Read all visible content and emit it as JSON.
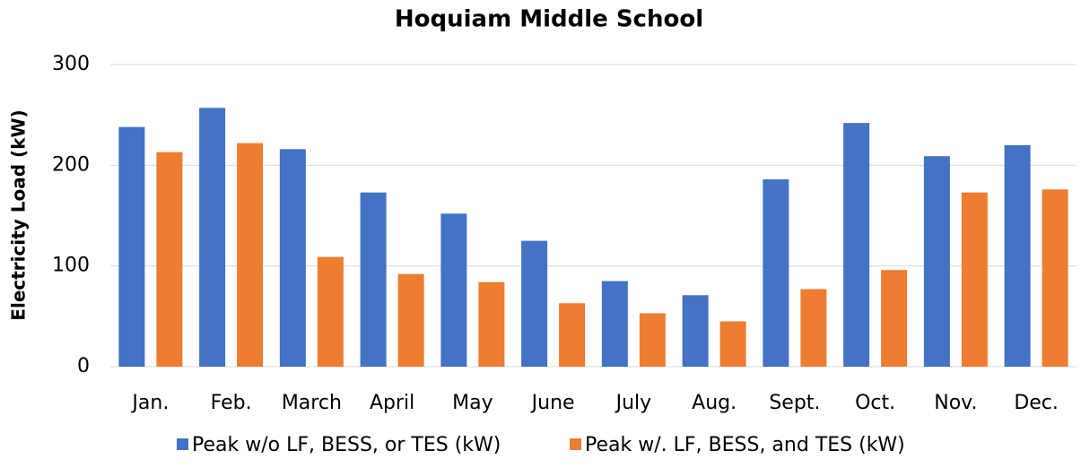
{
  "chart_data": {
    "type": "bar",
    "title": "Hoquiam Middle School",
    "y_label": "Electricity Load (kW)",
    "categories": [
      "Jan.",
      "Feb.",
      "March",
      "April",
      "May",
      "June",
      "July",
      "Aug.",
      "Sept.",
      "Oct.",
      "Nov.",
      "Dec."
    ],
    "series": [
      {
        "name": "Peak w/o LF, BESS, or TES (kW)",
        "color": "#4472c4",
        "values": [
          238,
          257,
          216,
          173,
          152,
          125,
          85,
          71,
          186,
          242,
          209,
          220
        ]
      },
      {
        "name": "Peak w/. LF, BESS, and TES (kW)",
        "color": "#ed7d31",
        "values": [
          213,
          222,
          109,
          92,
          84,
          63,
          53,
          45,
          77,
          96,
          173,
          176
        ]
      }
    ],
    "ylim": [
      0,
      300
    ],
    "yticks": [
      0,
      100,
      200,
      300
    ],
    "grid": true,
    "legend": "bottom"
  }
}
